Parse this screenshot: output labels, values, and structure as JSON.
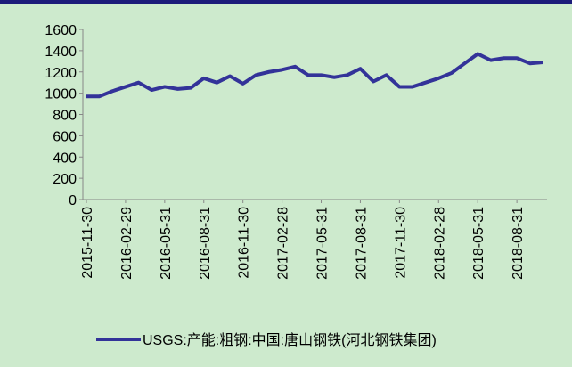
{
  "chart_data": {
    "type": "line",
    "categories": [
      "2015-11-30",
      null,
      null,
      "2016-02-29",
      null,
      null,
      "2016-05-31",
      null,
      null,
      "2016-08-31",
      null,
      null,
      "2016-11-30",
      null,
      null,
      "2017-02-28",
      null,
      null,
      "2017-05-31",
      null,
      null,
      "2017-08-31",
      null,
      null,
      "2017-11-30",
      null,
      null,
      "2018-02-28",
      null,
      null,
      "2018-05-31",
      null,
      null,
      "2018-08-31",
      null,
      null
    ],
    "series": [
      {
        "name": "USGS:产能:粗钢:中国:唐山钢铁(河北钢铁集团)",
        "color": "#333399",
        "values": [
          970,
          970,
          1020,
          1060,
          1100,
          1030,
          1060,
          1040,
          1050,
          1140,
          1100,
          1160,
          1090,
          1170,
          1200,
          1220,
          1250,
          1170,
          1170,
          1150,
          1170,
          1230,
          1110,
          1170,
          1060,
          1060,
          1100,
          1140,
          1190,
          1280,
          1370,
          1310,
          1330,
          1330,
          1280,
          1290
        ]
      }
    ],
    "ylim": [
      0,
      1600
    ],
    "yticks": [
      0,
      200,
      400,
      600,
      800,
      1000,
      1200,
      1400,
      1600
    ],
    "legend": "bottom"
  }
}
